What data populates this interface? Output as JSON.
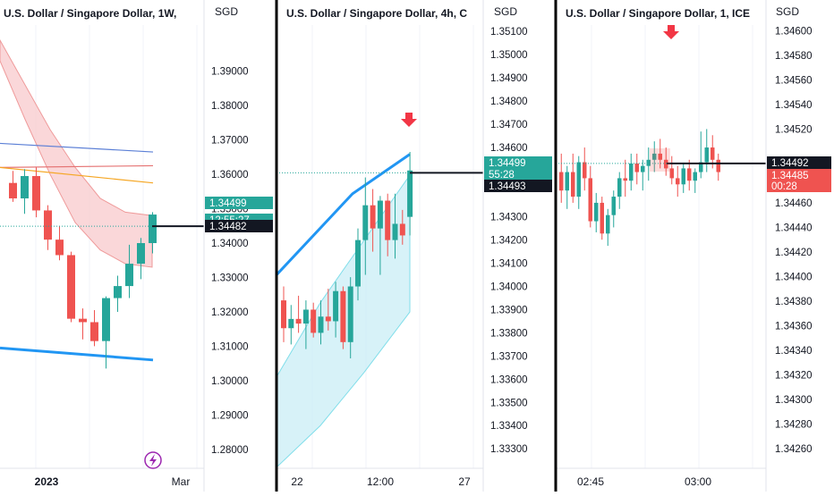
{
  "colors": {
    "up": "#26a69a",
    "down": "#ef5350",
    "axis_text": "#131722",
    "grid": "#f0f3fa",
    "divider": "#000000",
    "price_line": "#131722",
    "arrow": "#f23645",
    "ma_blue": "#2196f3",
    "cloud_pink": "#f8c9cc",
    "cloud_cyan": "#c9eef5",
    "badge_purple": "#9c27b0"
  },
  "chart_data": [
    {
      "type": "candlestick",
      "title": "U.S. Dollar / Singapore Dollar, 1W,",
      "axis_unit": "SGD",
      "y_ticks": [
        1.39,
        1.38,
        1.37,
        1.36,
        1.35,
        1.34,
        1.33,
        1.32,
        1.31,
        1.3,
        1.29,
        1.28
      ],
      "x_ticks": [
        "2023",
        "Mar"
      ],
      "ylim": [
        1.2745,
        1.4107
      ],
      "price_labels": [
        {
          "text": "1.34499",
          "style": "up"
        },
        {
          "text": "12:55:27",
          "style": "up"
        },
        {
          "text": "1.34482",
          "style": "dark"
        }
      ],
      "current_price": 1.3449,
      "candles": [
        {
          "o": 1.3575,
          "h": 1.361,
          "l": 1.352,
          "c": 1.353
        },
        {
          "o": 1.353,
          "h": 1.3615,
          "l": 1.3485,
          "c": 1.3595
        },
        {
          "o": 1.3595,
          "h": 1.362,
          "l": 1.3475,
          "c": 1.3495
        },
        {
          "o": 1.3495,
          "h": 1.351,
          "l": 1.338,
          "c": 1.341
        },
        {
          "o": 1.341,
          "h": 1.345,
          "l": 1.335,
          "c": 1.3365
        },
        {
          "o": 1.3365,
          "h": 1.3375,
          "l": 1.317,
          "c": 1.318
        },
        {
          "o": 1.318,
          "h": 1.321,
          "l": 1.312,
          "c": 1.317
        },
        {
          "o": 1.317,
          "h": 1.3205,
          "l": 1.31,
          "c": 1.3115
        },
        {
          "o": 1.3115,
          "h": 1.3245,
          "l": 1.3035,
          "c": 1.324
        },
        {
          "o": 1.324,
          "h": 1.3305,
          "l": 1.32,
          "c": 1.3275
        },
        {
          "o": 1.3275,
          "h": 1.3395,
          "l": 1.324,
          "c": 1.334
        },
        {
          "o": 1.334,
          "h": 1.3415,
          "l": 1.3295,
          "c": 1.34
        },
        {
          "o": 1.34,
          "h": 1.349,
          "l": 1.337,
          "c": 1.3483
        }
      ],
      "lines": [
        {
          "color": "#5b7fd6",
          "values": [
            1.369,
            1.3665
          ]
        },
        {
          "color": "#e57373",
          "values": [
            1.362,
            1.3625
          ]
        },
        {
          "color": "#f5a623",
          "values": [
            1.362,
            1.3575
          ]
        },
        {
          "color": "#2196f3",
          "values": [
            1.3095,
            1.306
          ]
        }
      ],
      "ribbon": {
        "upper": [
          1.399,
          1.386,
          1.373,
          1.362,
          1.353,
          1.349,
          1.348
        ],
        "lower": [
          1.393,
          1.376,
          1.36,
          1.346,
          1.338,
          1.334,
          1.333
        ]
      },
      "arrow": false
    },
    {
      "type": "candlestick",
      "title": "U.S. Dollar / Singapore Dollar, 4h, C",
      "axis_unit": "SGD",
      "y_ticks": [
        1.351,
        1.35,
        1.349,
        1.348,
        1.347,
        1.346,
        1.345,
        1.343,
        1.342,
        1.341,
        1.34,
        1.339,
        1.338,
        1.337,
        1.336,
        1.335,
        1.334,
        1.333
      ],
      "x_ticks": [
        "22",
        "12:00",
        "27"
      ],
      "ylim": [
        1.33216,
        1.35235
      ],
      "price_labels": [
        {
          "text": "1.34499",
          "style": "up"
        },
        {
          "text": "55:28",
          "style": "up"
        },
        {
          "text": "1.34493",
          "style": "dark"
        }
      ],
      "current_price": 1.3449,
      "candles": [
        {
          "o": 1.3394,
          "h": 1.34,
          "l": 1.3376,
          "c": 1.3382
        },
        {
          "o": 1.3382,
          "h": 1.3392,
          "l": 1.3375,
          "c": 1.3386
        },
        {
          "o": 1.3386,
          "h": 1.3396,
          "l": 1.338,
          "c": 1.3384
        },
        {
          "o": 1.3384,
          "h": 1.3394,
          "l": 1.3373,
          "c": 1.339
        },
        {
          "o": 1.339,
          "h": 1.3393,
          "l": 1.3378,
          "c": 1.338
        },
        {
          "o": 1.338,
          "h": 1.3394,
          "l": 1.3375,
          "c": 1.3387
        },
        {
          "o": 1.3387,
          "h": 1.3399,
          "l": 1.3381,
          "c": 1.3385
        },
        {
          "o": 1.3385,
          "h": 1.3402,
          "l": 1.3378,
          "c": 1.3398
        },
        {
          "o": 1.3398,
          "h": 1.34,
          "l": 1.3373,
          "c": 1.3376
        },
        {
          "o": 1.3376,
          "h": 1.3404,
          "l": 1.3369,
          "c": 1.34
        },
        {
          "o": 1.34,
          "h": 1.3425,
          "l": 1.3394,
          "c": 1.342
        },
        {
          "o": 1.342,
          "h": 1.3447,
          "l": 1.3405,
          "c": 1.3435
        },
        {
          "o": 1.3435,
          "h": 1.3442,
          "l": 1.3415,
          "c": 1.3425
        },
        {
          "o": 1.3425,
          "h": 1.3439,
          "l": 1.3405,
          "c": 1.3437
        },
        {
          "o": 1.3437,
          "h": 1.344,
          "l": 1.3413,
          "c": 1.342
        },
        {
          "o": 1.342,
          "h": 1.344,
          "l": 1.3412,
          "c": 1.3427
        },
        {
          "o": 1.3427,
          "h": 1.3433,
          "l": 1.3418,
          "c": 1.3422
        },
        {
          "o": 1.343,
          "h": 1.3458,
          "l": 1.3422,
          "c": 1.345
        }
      ],
      "lines": [
        {
          "color": "#2196f3",
          "values": [
            1.3405,
            1.344,
            1.3457
          ]
        }
      ],
      "ribbon": {
        "upper": [
          1.3361,
          1.3393,
          1.342,
          1.3448
        ],
        "lower": [
          1.3322,
          1.334,
          1.3363,
          1.3389
        ]
      },
      "arrow": true
    },
    {
      "type": "candlestick",
      "title": "U.S. Dollar / Singapore Dollar, 1, ICE",
      "axis_unit": "SGD",
      "y_ticks": [
        1.346,
        1.3458,
        1.3456,
        1.3454,
        1.3452,
        1.3446,
        1.3444,
        1.3442,
        1.344,
        1.3438,
        1.3436,
        1.3434,
        1.3432,
        1.343,
        1.3428,
        1.3426
      ],
      "x_ticks": [
        "02:45",
        "03:00"
      ],
      "ylim": [
        1.34244,
        1.34625
      ],
      "price_labels": [
        {
          "text": "1.34492",
          "style": "dark"
        },
        {
          "text": "1.34485",
          "style": "down"
        },
        {
          "text": "00:28",
          "style": "down"
        }
      ],
      "current_price": 1.34492,
      "candles": [
        {
          "o": 1.34485,
          "h": 1.345,
          "l": 1.3446,
          "c": 1.3447
        },
        {
          "o": 1.3447,
          "h": 1.3449,
          "l": 1.34455,
          "c": 1.34485
        },
        {
          "o": 1.34485,
          "h": 1.345,
          "l": 1.3446,
          "c": 1.34465
        },
        {
          "o": 1.34465,
          "h": 1.34498,
          "l": 1.34455,
          "c": 1.34493
        },
        {
          "o": 1.34493,
          "h": 1.34505,
          "l": 1.3447,
          "c": 1.3448
        },
        {
          "o": 1.3448,
          "h": 1.3449,
          "l": 1.3444,
          "c": 1.34445
        },
        {
          "o": 1.34445,
          "h": 1.34468,
          "l": 1.34436,
          "c": 1.3446
        },
        {
          "o": 1.3446,
          "h": 1.34465,
          "l": 1.3443,
          "c": 1.34435
        },
        {
          "o": 1.34435,
          "h": 1.34455,
          "l": 1.34425,
          "c": 1.3445
        },
        {
          "o": 1.3445,
          "h": 1.3447,
          "l": 1.3444,
          "c": 1.34465
        },
        {
          "o": 1.34465,
          "h": 1.34485,
          "l": 1.34455,
          "c": 1.3448
        },
        {
          "o": 1.3448,
          "h": 1.34495,
          "l": 1.34465,
          "c": 1.34478
        },
        {
          "o": 1.34478,
          "h": 1.345,
          "l": 1.3447,
          "c": 1.34492
        },
        {
          "o": 1.34492,
          "h": 1.345,
          "l": 1.34475,
          "c": 1.34485
        },
        {
          "o": 1.34485,
          "h": 1.34495,
          "l": 1.3447,
          "c": 1.3449
        },
        {
          "o": 1.3449,
          "h": 1.34505,
          "l": 1.34478,
          "c": 1.34495
        },
        {
          "o": 1.34495,
          "h": 1.3451,
          "l": 1.34485,
          "c": 1.345
        },
        {
          "o": 1.345,
          "h": 1.34512,
          "l": 1.34488,
          "c": 1.34495
        },
        {
          "o": 1.34495,
          "h": 1.34505,
          "l": 1.34482,
          "c": 1.34488
        },
        {
          "o": 1.34488,
          "h": 1.34498,
          "l": 1.34475,
          "c": 1.3448
        },
        {
          "o": 1.3448,
          "h": 1.3449,
          "l": 1.34465,
          "c": 1.34475
        },
        {
          "o": 1.34475,
          "h": 1.34492,
          "l": 1.34468,
          "c": 1.34488
        },
        {
          "o": 1.34488,
          "h": 1.34495,
          "l": 1.3447,
          "c": 1.34478
        },
        {
          "o": 1.34478,
          "h": 1.34488,
          "l": 1.34468,
          "c": 1.34485
        },
        {
          "o": 1.34485,
          "h": 1.34518,
          "l": 1.3448,
          "c": 1.34493
        },
        {
          "o": 1.34493,
          "h": 1.3452,
          "l": 1.34485,
          "c": 1.34505
        },
        {
          "o": 1.34505,
          "h": 1.34515,
          "l": 1.34488,
          "c": 1.34495
        },
        {
          "o": 1.34495,
          "h": 1.345,
          "l": 1.34478,
          "c": 1.34485
        }
      ],
      "lines": [],
      "ribbon": null,
      "arrow": true
    }
  ]
}
